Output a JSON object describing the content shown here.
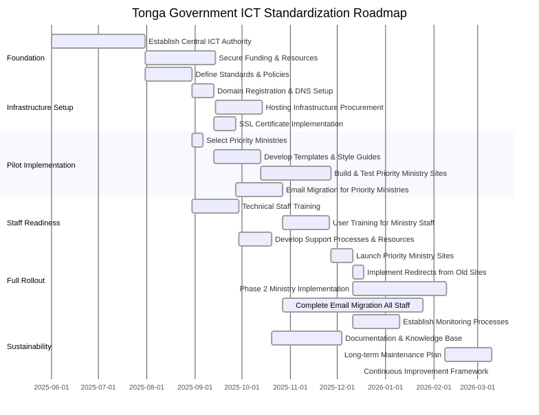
{
  "chart_data": {
    "type": "gantt",
    "title": "Tonga Government ICT Standardization Roadmap",
    "x_axis": {
      "type": "date",
      "range": [
        "2025-06-01",
        "2026-03-24"
      ],
      "ticks": [
        "2025-06-01",
        "2025-07-01",
        "2025-08-01",
        "2025-09-01",
        "2025-10-01",
        "2025-11-01",
        "2025-12-01",
        "2026-01-01",
        "2026-02-01",
        "2026-03-01"
      ]
    },
    "grid": true,
    "highlighted_section": "Pilot Implementation",
    "sections": [
      {
        "name": "Foundation",
        "tasks": [
          {
            "name": "Establish Central ICT Authority",
            "start": "2025-06-01",
            "end": "2025-07-31"
          },
          {
            "name": "Secure Funding & Resources",
            "start": "2025-07-31",
            "end": "2025-09-14"
          },
          {
            "name": "Define Standards & Policies",
            "start": "2025-07-31",
            "end": "2025-08-30"
          }
        ]
      },
      {
        "name": "Infrastructure Setup",
        "tasks": [
          {
            "name": "Domain Registration & DNS Setup",
            "start": "2025-08-30",
            "end": "2025-09-13"
          },
          {
            "name": "Hosting Infrastructure Procurement",
            "start": "2025-09-14",
            "end": "2025-10-14"
          },
          {
            "name": "SSL Certificate Implementation",
            "start": "2025-09-13",
            "end": "2025-09-27"
          }
        ]
      },
      {
        "name": "Pilot Implementation",
        "tasks": [
          {
            "name": "Select Priority Ministries",
            "start": "2025-08-30",
            "end": "2025-09-06"
          },
          {
            "name": "Develop Templates & Style Guides",
            "start": "2025-09-13",
            "end": "2025-10-13"
          },
          {
            "name": "Build & Test Priority Ministry Sites",
            "start": "2025-10-13",
            "end": "2025-11-27"
          },
          {
            "name": "Email Migration for Priority Ministries",
            "start": "2025-09-27",
            "end": "2025-10-27"
          }
        ]
      },
      {
        "name": "Staff Readiness",
        "tasks": [
          {
            "name": "Technical Staff Training",
            "start": "2025-08-30",
            "end": "2025-09-29"
          },
          {
            "name": "User Training for Ministry Staff",
            "start": "2025-10-27",
            "end": "2025-11-26"
          },
          {
            "name": "Develop Support Processes & Resources",
            "start": "2025-09-29",
            "end": "2025-10-20"
          }
        ]
      },
      {
        "name": "Full Rollout",
        "tasks": [
          {
            "name": "Launch Priority Ministry Sites",
            "start": "2025-11-27",
            "end": "2025-12-11"
          },
          {
            "name": "Implement Redirects from Old Sites",
            "start": "2025-12-11",
            "end": "2025-12-18"
          },
          {
            "name": "Phase 2 Ministry Implementation",
            "start": "2025-12-11",
            "end": "2026-02-09"
          },
          {
            "name": "Complete Email Migration All Staff",
            "start": "2025-10-27",
            "end": "2026-01-25"
          }
        ]
      },
      {
        "name": "Sustainability",
        "tasks": [
          {
            "name": "Establish Monitoring Processes",
            "start": "2025-12-11",
            "end": "2026-01-10"
          },
          {
            "name": "Documentation & Knowledge Base",
            "start": "2025-10-20",
            "end": "2025-12-04"
          },
          {
            "name": "Long-term Maintenance Plan",
            "start": "2026-02-08",
            "end": "2026-03-10"
          },
          {
            "name": "Continuous Improvement Framework",
            "start": "2026-03-10",
            "end": "2026-03-10"
          }
        ]
      }
    ]
  }
}
